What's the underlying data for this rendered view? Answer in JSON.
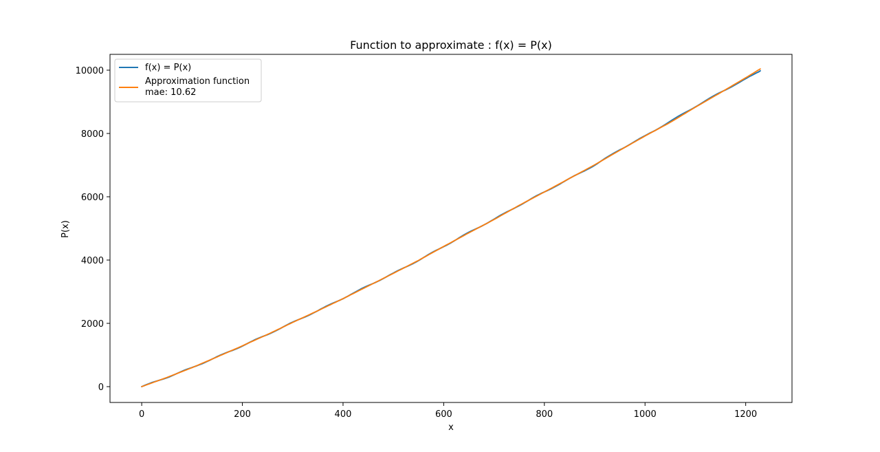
{
  "chart_data": {
    "type": "line",
    "title": "Function to approximate : f(x) = P(x)",
    "xlabel": "x",
    "ylabel": "P(x)",
    "xlim": [
      -63,
      1292
    ],
    "ylim": [
      -500,
      10500
    ],
    "xticks": [
      "0",
      "200",
      "400",
      "600",
      "800",
      "1000",
      "1200"
    ],
    "yticks": [
      "0",
      "2000",
      "4000",
      "6000",
      "8000",
      "10000"
    ],
    "grid": false,
    "legend_position": "upper-left",
    "series": [
      {
        "name": "f(x) = P(x)",
        "color": "#1f77b4",
        "x": [
          0,
          50,
          100,
          150,
          200,
          250,
          300,
          350,
          400,
          450,
          500,
          550,
          600,
          650,
          700,
          750,
          800,
          850,
          900,
          950,
          1000,
          1050,
          1100,
          1150,
          1200,
          1229
        ],
        "y": [
          0,
          290,
          600,
          940,
          1290,
          1650,
          2030,
          2400,
          2790,
          3190,
          3580,
          3990,
          4430,
          4870,
          5290,
          5730,
          6150,
          6570,
          7000,
          7490,
          7920,
          8380,
          8850,
          9300,
          9720,
          9980
        ]
      },
      {
        "name": "Approximation function\nmae: 10.62",
        "color": "#ff7f0e",
        "x": [
          0,
          50,
          100,
          150,
          200,
          250,
          300,
          350,
          400,
          450,
          500,
          550,
          600,
          650,
          700,
          750,
          800,
          850,
          900,
          950,
          1000,
          1050,
          1100,
          1150,
          1200,
          1229
        ],
        "y": [
          0,
          290,
          600,
          940,
          1290,
          1650,
          2030,
          2400,
          2780,
          3180,
          3580,
          3990,
          4430,
          4860,
          5280,
          5730,
          6150,
          6580,
          7010,
          7470,
          7920,
          8350,
          8830,
          9290,
          9760,
          10040
        ]
      }
    ],
    "legend": {
      "entries": [
        {
          "lines": [
            "f(x) = P(x)"
          ],
          "color": "#1f77b4"
        },
        {
          "lines": [
            "Approximation function",
            "mae: 10.62"
          ],
          "color": "#ff7f0e"
        }
      ]
    }
  }
}
